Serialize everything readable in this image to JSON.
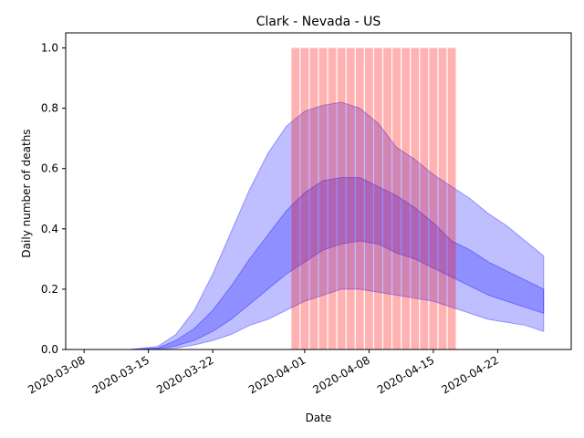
{
  "chart_data": {
    "type": "area",
    "title": "Clark - Nevada - US",
    "xlabel": "Date",
    "ylabel": "Daily number of deaths",
    "xlim": [
      "2020-03-06",
      "2020-04-30"
    ],
    "ylim": [
      0,
      1.05
    ],
    "x_tick_labels": [
      "2020-03-08",
      "2020-03-15",
      "2020-03-22",
      "2020-04-01",
      "2020-04-08",
      "2020-04-15",
      "2020-04-22"
    ],
    "y_tick_labels": [
      "0.0",
      "0.2",
      "0.4",
      "0.6",
      "0.8",
      "1.0"
    ],
    "x": [
      "2020-03-08",
      "2020-03-13",
      "2020-03-16",
      "2020-03-18",
      "2020-03-20",
      "2020-03-22",
      "2020-03-24",
      "2020-03-26",
      "2020-03-28",
      "2020-03-30",
      "2020-04-01",
      "2020-04-03",
      "2020-04-05",
      "2020-04-07",
      "2020-04-09",
      "2020-04-11",
      "2020-04-13",
      "2020-04-15",
      "2020-04-17",
      "2020-04-19",
      "2020-04-21",
      "2020-04-23",
      "2020-04-25",
      "2020-04-27"
    ],
    "series": [
      {
        "band": "outer",
        "color": "#0000ff",
        "upper": [
          0.0,
          0.0,
          0.01,
          0.05,
          0.13,
          0.25,
          0.39,
          0.53,
          0.65,
          0.74,
          0.79,
          0.81,
          0.82,
          0.8,
          0.75,
          0.67,
          0.63,
          0.58,
          0.54,
          0.5,
          0.45,
          0.41,
          0.36,
          0.31
        ],
        "lower": [
          0.0,
          0.0,
          0.0,
          0.005,
          0.015,
          0.03,
          0.05,
          0.08,
          0.1,
          0.13,
          0.16,
          0.18,
          0.2,
          0.2,
          0.19,
          0.18,
          0.17,
          0.16,
          0.14,
          0.12,
          0.1,
          0.09,
          0.08,
          0.06
        ]
      },
      {
        "band": "inner",
        "color": "#0000ff",
        "upper": [
          0.0,
          0.0,
          0.005,
          0.03,
          0.07,
          0.13,
          0.21,
          0.3,
          0.38,
          0.46,
          0.52,
          0.56,
          0.57,
          0.57,
          0.54,
          0.51,
          0.47,
          0.42,
          0.36,
          0.33,
          0.29,
          0.26,
          0.23,
          0.2
        ],
        "lower": [
          0.0,
          0.0,
          0.002,
          0.012,
          0.03,
          0.06,
          0.1,
          0.15,
          0.2,
          0.25,
          0.29,
          0.33,
          0.35,
          0.36,
          0.35,
          0.32,
          0.3,
          0.27,
          0.24,
          0.21,
          0.18,
          0.16,
          0.14,
          0.12
        ]
      }
    ],
    "highlight": {
      "color": "#ff0000",
      "height": 1.0,
      "bars": [
        "2020-03-31",
        "2020-04-01",
        "2020-04-02",
        "2020-04-03",
        "2020-04-04",
        "2020-04-05",
        "2020-04-06",
        "2020-04-07",
        "2020-04-08",
        "2020-04-09",
        "2020-04-10",
        "2020-04-11",
        "2020-04-12",
        "2020-04-13",
        "2020-04-14",
        "2020-04-15",
        "2020-04-16",
        "2020-04-17"
      ]
    },
    "grid": false,
    "legend": "none"
  }
}
